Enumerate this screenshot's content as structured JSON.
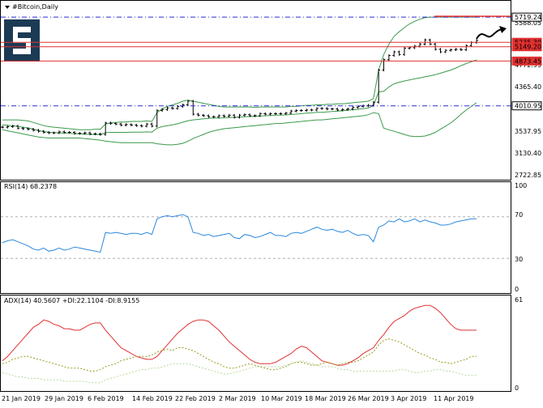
{
  "window": {
    "title": "#Bitcoin,Daily"
  },
  "logo": {
    "glyph": "S",
    "icon": "stocks-logo-icon",
    "color": "#1b3b55"
  },
  "colors": {
    "price_line": "#e03030",
    "dash_line": "#2a2ad8",
    "band": "#3a9a4a",
    "rsi": "#2a88dd",
    "adx": "#e03030",
    "di_plus": "#9a9a20",
    "di_minus": "#b6d89a",
    "level_box": "#e03030",
    "grid_dash": "#b0b0b0"
  },
  "price_pane": {
    "ticks": [
      "5588.05",
      "4772.95",
      "4365.40",
      "3537.95",
      "3130.40",
      "2722.85"
    ],
    "levels": [
      {
        "label": "5719.24",
        "price": 5719.24,
        "style": "dash-dot",
        "box": "outline"
      },
      {
        "label": "5235.30",
        "price": 5235.3,
        "style": "solid",
        "box": "filled"
      },
      {
        "label": "5149.20",
        "price": 5149.2,
        "style": "solid",
        "box": "filled"
      },
      {
        "label": "4873.45",
        "price": 4873.45,
        "style": "solid",
        "box": "filled"
      },
      {
        "label": "4010.95",
        "price": 4010.95,
        "style": "dash-dot",
        "box": "outline"
      }
    ],
    "arrow_icon": "forecast-arrow-icon"
  },
  "rsi_pane": {
    "label": "RSI(14) 68.2378",
    "ticks": [
      "100",
      "70",
      "30",
      "0"
    ]
  },
  "adx_pane": {
    "label": "ADX(14) 40.5607 +DI:22.1104 -DI:8.9155",
    "ticks": [
      "61",
      "0"
    ]
  },
  "x_axis": {
    "labels": [
      "21 Jan 2019",
      "29 Jan 2019",
      "6 Feb 2019",
      "14 Feb 2019",
      "22 Feb 2019",
      "2 Mar 2019",
      "10 Mar 2019",
      "18 Mar 2019",
      "26 Mar 2019",
      "3 Apr 2019",
      "11 Apr 2019"
    ]
  },
  "chart_data": [
    {
      "type": "line",
      "name": "price",
      "x_labels": [
        "21 Jan 2019",
        "29 Jan 2019",
        "6 Feb 2019",
        "14 Feb 2019",
        "22 Feb 2019",
        "2 Mar 2019",
        "10 Mar 2019",
        "18 Mar 2019",
        "26 Mar 2019",
        "3 Apr 2019",
        "11 Apr 2019"
      ],
      "ylim": [
        2650,
        5800
      ],
      "close": [
        3600,
        3610,
        3620,
        3580,
        3570,
        3560,
        3540,
        3520,
        3500,
        3490,
        3490,
        3510,
        3500,
        3500,
        3480,
        3480,
        3490,
        3470,
        3470,
        3460,
        3680,
        3670,
        3660,
        3640,
        3650,
        3640,
        3630,
        3620,
        3660,
        3620,
        3920,
        3940,
        3970,
        3960,
        4000,
        4030,
        4100,
        3850,
        3830,
        3820,
        3800,
        3800,
        3820,
        3810,
        3830,
        3790,
        3830,
        3840,
        3820,
        3820,
        3860,
        3850,
        3860,
        3860,
        3860,
        3870,
        3910,
        3920,
        3920,
        3930,
        3930,
        3960,
        3960,
        3950,
        3950,
        3930,
        3940,
        3950,
        3980,
        4000,
        4010,
        4020,
        4080,
        4700,
        4900,
        4980,
        5050,
        5000,
        5120,
        5130,
        5160,
        5200,
        5280,
        5200,
        5100,
        5050,
        5080,
        5090,
        5100,
        5090,
        5170,
        5230,
        5270
      ],
      "bb_upper": [
        3740,
        3740,
        3740,
        3740,
        3730,
        3720,
        3690,
        3660,
        3630,
        3610,
        3600,
        3590,
        3580,
        3570,
        3560,
        3550,
        3550,
        3550,
        3560,
        3560,
        3660,
        3680,
        3690,
        3700,
        3700,
        3710,
        3710,
        3710,
        3720,
        3710,
        3880,
        3950,
        4000,
        4030,
        4060,
        4100,
        4120,
        4100,
        4080,
        4060,
        4040,
        4020,
        4000,
        3990,
        3990,
        3990,
        3990,
        3990,
        3990,
        3980,
        3990,
        3990,
        3990,
        3990,
        3990,
        3990,
        4000,
        4000,
        4010,
        4020,
        4020,
        4030,
        4030,
        4040,
        4040,
        4050,
        4050,
        4060,
        4070,
        4080,
        4090,
        4100,
        4150,
        4700,
        5000,
        5200,
        5350,
        5440,
        5520,
        5590,
        5640,
        5680,
        5710,
        5720,
        5720,
        5720,
        5720,
        5720,
        5720,
        5720,
        5720,
        5720,
        5720
      ],
      "bb_lower": [
        3550,
        3530,
        3510,
        3490,
        3470,
        3450,
        3430,
        3410,
        3400,
        3390,
        3390,
        3390,
        3390,
        3390,
        3390,
        3390,
        3380,
        3370,
        3360,
        3350,
        3330,
        3320,
        3310,
        3300,
        3300,
        3300,
        3300,
        3300,
        3300,
        3300,
        3280,
        3270,
        3260,
        3260,
        3270,
        3290,
        3330,
        3380,
        3420,
        3460,
        3500,
        3530,
        3550,
        3570,
        3580,
        3590,
        3600,
        3610,
        3620,
        3630,
        3640,
        3650,
        3660,
        3670,
        3670,
        3680,
        3690,
        3700,
        3710,
        3720,
        3730,
        3740,
        3740,
        3750,
        3760,
        3770,
        3780,
        3790,
        3800,
        3810,
        3820,
        3840,
        3880,
        3860,
        3580,
        3550,
        3520,
        3490,
        3460,
        3430,
        3420,
        3420,
        3430,
        3460,
        3500,
        3560,
        3620,
        3680,
        3760,
        3850,
        3930,
        4000,
        4070
      ],
      "bb_middle": [
        3645,
        3635,
        3625,
        3615,
        3600,
        3585,
        3560,
        3535,
        3515,
        3500,
        3495,
        3490,
        3485,
        3480,
        3475,
        3470,
        3465,
        3460,
        3460,
        3455,
        3495,
        3500,
        3500,
        3500,
        3500,
        3505,
        3505,
        3505,
        3510,
        3505,
        3580,
        3610,
        3630,
        3645,
        3665,
        3695,
        3725,
        3740,
        3750,
        3760,
        3770,
        3775,
        3775,
        3780,
        3785,
        3790,
        3795,
        3800,
        3805,
        3805,
        3815,
        3820,
        3825,
        3830,
        3830,
        3835,
        3845,
        3850,
        3860,
        3870,
        3875,
        3885,
        3885,
        3895,
        3900,
        3910,
        3915,
        3925,
        3935,
        3945,
        3955,
        3970,
        4015,
        4280,
        4290,
        4375,
        4435,
        4465,
        4490,
        4510,
        4530,
        4550,
        4570,
        4590,
        4610,
        4640,
        4670,
        4700,
        4740,
        4785,
        4825,
        4860,
        4895
      ]
    },
    {
      "type": "line",
      "name": "RSI(14)",
      "ylim": [
        0,
        100
      ],
      "levels": [
        70,
        30
      ],
      "values": [
        45,
        47,
        48,
        46,
        44,
        42,
        39,
        38,
        40,
        37,
        38,
        40,
        38,
        39,
        41,
        40,
        39,
        38,
        37,
        36,
        55,
        54,
        55,
        54,
        53,
        54,
        54,
        53,
        55,
        53,
        68,
        70,
        71,
        70,
        71,
        72,
        70,
        55,
        54,
        52,
        53,
        51,
        52,
        53,
        54,
        50,
        49,
        53,
        52,
        50,
        51,
        53,
        55,
        52,
        52,
        51,
        54,
        55,
        54,
        56,
        58,
        60,
        58,
        57,
        58,
        56,
        55,
        57,
        54,
        52,
        53,
        52,
        46,
        60,
        62,
        66,
        65,
        68,
        65,
        66,
        68,
        65,
        67,
        65,
        64,
        62,
        62,
        63,
        65,
        66,
        67,
        68,
        68
      ]
    },
    {
      "type": "line",
      "name": "ADX(14)",
      "ylim": [
        0,
        61
      ],
      "series": [
        {
          "name": "ADX(14)",
          "values": [
            19,
            22,
            26,
            30,
            34,
            38,
            42,
            44,
            47,
            46,
            44,
            43,
            41,
            41,
            40,
            40,
            42,
            44,
            45,
            45,
            40,
            36,
            32,
            28,
            26,
            24,
            22,
            21,
            20,
            20,
            22,
            26,
            30,
            34,
            38,
            41,
            44,
            46,
            47,
            47,
            46,
            43,
            40,
            36,
            32,
            29,
            26,
            23,
            20,
            18,
            17,
            17,
            17,
            18,
            20,
            22,
            24,
            27,
            29,
            28,
            25,
            22,
            19,
            18,
            17,
            16,
            16,
            17,
            19,
            21,
            24,
            26,
            28,
            33,
            37,
            42,
            46,
            48,
            50,
            53,
            55,
            56,
            57,
            57,
            55,
            52,
            48,
            44,
            41,
            40,
            40,
            40,
            40
          ]
        },
        {
          "name": "+DI",
          "values": [
            17,
            18,
            20,
            21,
            22,
            22,
            21,
            20,
            19,
            18,
            17,
            16,
            15,
            14,
            14,
            14,
            13,
            12,
            12,
            13,
            15,
            16,
            17,
            19,
            20,
            21,
            22,
            22,
            22,
            23,
            25,
            26,
            27,
            26,
            28,
            28,
            27,
            26,
            24,
            22,
            20,
            18,
            17,
            15,
            14,
            14,
            15,
            16,
            17,
            16,
            15,
            14,
            13,
            13,
            14,
            15,
            17,
            18,
            18,
            17,
            16,
            16,
            17,
            18,
            17,
            16,
            17,
            18,
            18,
            19,
            21,
            23,
            25,
            30,
            33,
            34,
            33,
            32,
            30,
            28,
            26,
            24,
            23,
            21,
            20,
            18,
            18,
            17,
            18,
            19,
            20,
            22,
            22
          ]
        },
        {
          "name": "-DI",
          "values": [
            11,
            10,
            9,
            8,
            8,
            7,
            7,
            7,
            6,
            6,
            6,
            6,
            5,
            5,
            5,
            5,
            5,
            4,
            4,
            4,
            6,
            7,
            8,
            9,
            10,
            11,
            12,
            13,
            13,
            14,
            14,
            15,
            16,
            17,
            17,
            17,
            17,
            16,
            15,
            14,
            13,
            12,
            11,
            10,
            10,
            11,
            12,
            13,
            14,
            15,
            15,
            15,
            15,
            15,
            15,
            16,
            17,
            18,
            19,
            18,
            17,
            16,
            15,
            15,
            15,
            14,
            13,
            13,
            12,
            12,
            12,
            12,
            12,
            12,
            12,
            12,
            12,
            13,
            13,
            12,
            11,
            11,
            12,
            12,
            13,
            13,
            12,
            12,
            11,
            10,
            9,
            9,
            9
          ]
        }
      ]
    }
  ]
}
